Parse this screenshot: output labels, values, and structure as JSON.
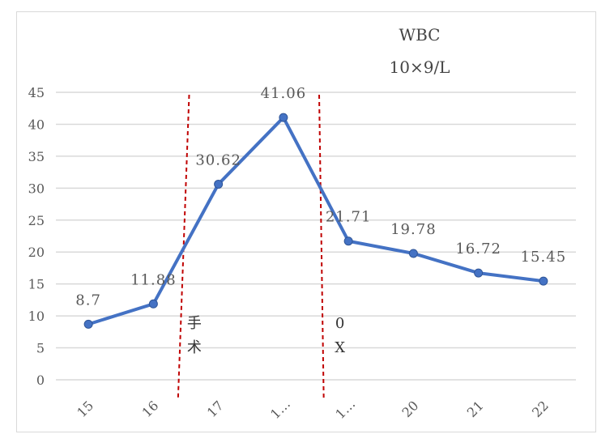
{
  "chart_data": {
    "type": "line",
    "title": "WBC",
    "subtitle": "10×9/L",
    "categories": [
      "15",
      "16",
      "17",
      "1…",
      "1…",
      "20",
      "21",
      "22"
    ],
    "series": [
      {
        "values": [
          8.7,
          11.88,
          30.62,
          41.06,
          21.71,
          19.78,
          16.72,
          15.45
        ]
      }
    ],
    "data_labels": [
      "8.7",
      "11.88",
      "30.62",
      "41.06",
      "21.71",
      "19.78",
      "16.72",
      "15.45"
    ],
    "ylim": [
      0,
      45
    ],
    "yticks": [
      "0",
      "5",
      "10",
      "15",
      "20",
      "25",
      "30",
      "35",
      "40",
      "45"
    ],
    "grid": true,
    "legend": "none",
    "annotations": [
      {
        "text_lines": [
          "手",
          "术"
        ]
      },
      {
        "text_lines": [
          "0",
          "X"
        ]
      }
    ],
    "colors": {
      "line": "#4472c4",
      "marker": "#4472c4",
      "grid": "#d9d9d9",
      "marker_line": "#c00000"
    }
  }
}
